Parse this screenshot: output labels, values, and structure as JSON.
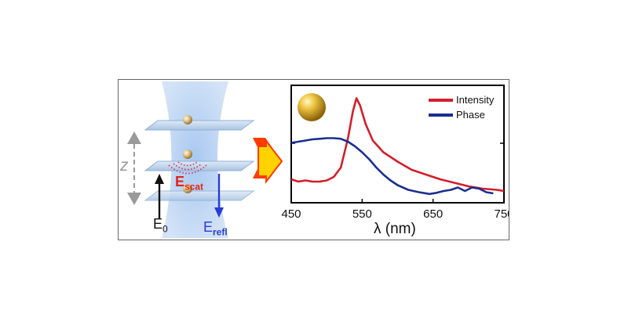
{
  "figure": {
    "labels": {
      "z": "z",
      "e0_main": "E",
      "e0_sub": "0",
      "escat_main": "E",
      "escat_sub": "scat",
      "erefl_main": "E",
      "erefl_sub": "refl"
    },
    "colors": {
      "escat": "#e2231a",
      "erefl": "#2a3bd6",
      "e0": "#111111",
      "arrow_fill": "#ffd200",
      "arrow_outline": "#ff3b00",
      "gold": "#d9a520"
    }
  },
  "chart_data": {
    "type": "line",
    "xlabel": "λ (nm)",
    "ylabel": "",
    "xlim": [
      450,
      750
    ],
    "x_ticks": [
      "450",
      "550",
      "650",
      "750"
    ],
    "legend_position": "top-right",
    "grid": false,
    "series": [
      {
        "name": "Intensity",
        "color": "#d21f2a",
        "points": [
          [
            450,
            0.2
          ],
          [
            460,
            0.18
          ],
          [
            470,
            0.19
          ],
          [
            480,
            0.18
          ],
          [
            490,
            0.18
          ],
          [
            500,
            0.19
          ],
          [
            510,
            0.22
          ],
          [
            520,
            0.3
          ],
          [
            530,
            0.55
          ],
          [
            537,
            0.78
          ],
          [
            542,
            0.89
          ],
          [
            547,
            0.83
          ],
          [
            555,
            0.67
          ],
          [
            565,
            0.53
          ],
          [
            580,
            0.43
          ],
          [
            600,
            0.35
          ],
          [
            620,
            0.28
          ],
          [
            640,
            0.24
          ],
          [
            660,
            0.2
          ],
          [
            680,
            0.17
          ],
          [
            700,
            0.14
          ],
          [
            720,
            0.12
          ],
          [
            740,
            0.11
          ],
          [
            750,
            0.1
          ]
        ]
      },
      {
        "name": "Phase",
        "color": "#1b2f8f",
        "points": [
          [
            450,
            0.51
          ],
          [
            460,
            0.52
          ],
          [
            470,
            0.53
          ],
          [
            480,
            0.54
          ],
          [
            490,
            0.545
          ],
          [
            500,
            0.55
          ],
          [
            510,
            0.55
          ],
          [
            520,
            0.545
          ],
          [
            530,
            0.52
          ],
          [
            540,
            0.48
          ],
          [
            550,
            0.43
          ],
          [
            560,
            0.37
          ],
          [
            570,
            0.3
          ],
          [
            580,
            0.24
          ],
          [
            590,
            0.19
          ],
          [
            600,
            0.15
          ],
          [
            615,
            0.11
          ],
          [
            630,
            0.09
          ],
          [
            645,
            0.075
          ],
          [
            655,
            0.085
          ],
          [
            665,
            0.1
          ],
          [
            675,
            0.11
          ],
          [
            685,
            0.13
          ],
          [
            695,
            0.1
          ],
          [
            705,
            0.13
          ],
          [
            715,
            0.12
          ],
          [
            725,
            0.09
          ],
          [
            735,
            0.08
          ]
        ]
      }
    ]
  }
}
